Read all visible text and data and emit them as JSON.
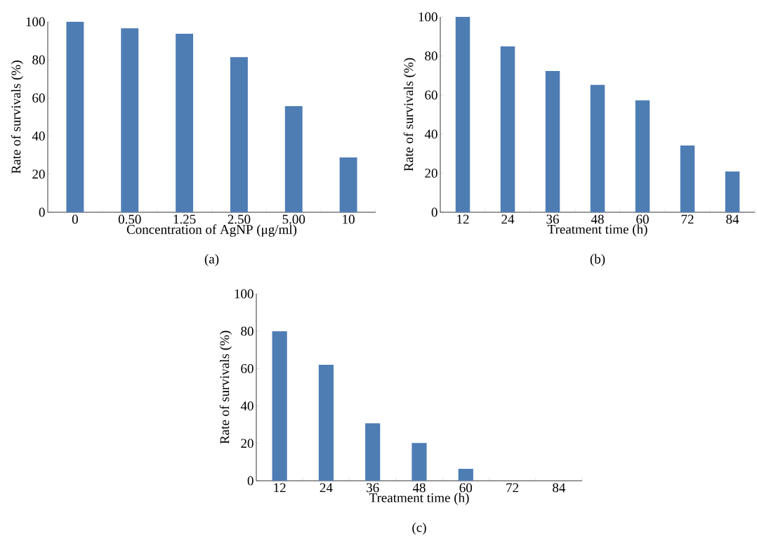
{
  "chart_data": [
    {
      "type": "bar",
      "categories": [
        "0",
        "0.50",
        "1.25",
        "2.50",
        "5.00",
        "10"
      ],
      "values": [
        100,
        96.6,
        93.7,
        81.5,
        55.7,
        28.8
      ],
      "color": "#4e7db4",
      "ylim": [
        0,
        100
      ],
      "yticks": [
        0,
        20,
        40,
        60,
        80,
        100
      ],
      "xlabel": "Concentration of AgNP (μg/ml)",
      "ylabel": "Rate of survivals (%)",
      "annotations": [
        "(a)"
      ]
    },
    {
      "type": "bar",
      "categories": [
        "12",
        "24",
        "36",
        "48",
        "60",
        "72",
        "84"
      ],
      "values": [
        100,
        84.9,
        72.3,
        65.2,
        57.3,
        34.2,
        20.9
      ],
      "color": "#4e7db4",
      "ylim": [
        0,
        100
      ],
      "yticks": [
        0,
        20,
        40,
        60,
        80,
        100
      ],
      "xlabel": "Treatment time (h)",
      "ylabel": "Rate of survivals (%)",
      "annotations": [
        "(b)"
      ]
    },
    {
      "type": "bar",
      "categories": [
        "12",
        "24",
        "36",
        "48",
        "60",
        "72",
        "84"
      ],
      "values": [
        80,
        62,
        30.7,
        20.2,
        6.4,
        0,
        0
      ],
      "color": "#4e7db4",
      "ylim": [
        0,
        100
      ],
      "yticks": [
        0,
        20,
        40,
        60,
        80,
        100
      ],
      "xlabel": "Treatment time (h)",
      "ylabel": "Rate of survivals (%)",
      "annotations": [
        "(c)"
      ]
    }
  ]
}
